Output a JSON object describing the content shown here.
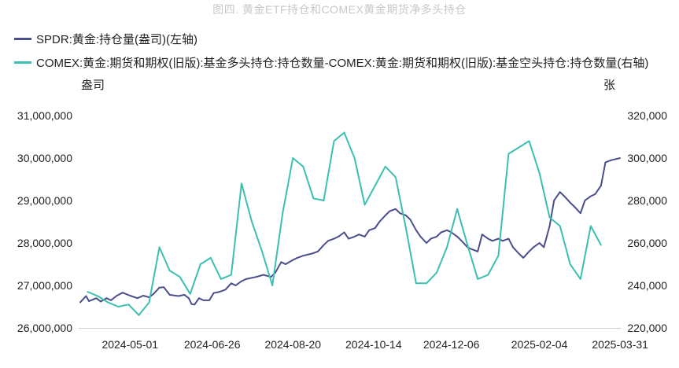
{
  "page_title": "图四. 黄金ETF持仓和COMEX黄金期货净多头持仓",
  "colors": {
    "spdr": "#4a4f8c",
    "comex": "#3cbfb0",
    "axis": "#cfcfcf"
  },
  "chart_data": {
    "type": "line",
    "title": "图四. 黄金ETF持仓和COMEX黄金期货净多头持仓",
    "left_unit": "盎司",
    "right_unit": "张",
    "y_left": {
      "min": 26000000,
      "max": 31000000,
      "ticks": [
        "26,000,000",
        "27,000,000",
        "28,000,000",
        "29,000,000",
        "30,000,000",
        "31,000,000"
      ]
    },
    "y_right": {
      "min": 220000,
      "max": 320000,
      "ticks": [
        "220,000",
        "240,000",
        "260,000",
        "280,000",
        "300,000",
        "320,000"
      ]
    },
    "x_range": [
      "2024-03-27",
      "2025-04-01"
    ],
    "x_ticks": [
      "2024-05-01",
      "2024-06-26",
      "2024-08-20",
      "2024-10-14",
      "2024-12-06",
      "2025-02-04",
      "2025-03-31"
    ],
    "series": [
      {
        "name": "SPDR:黄金:持仓量(盎司)(左轴)",
        "axis": "left",
        "points": [
          [
            "2024-03-28",
            26600000
          ],
          [
            "2024-04-01",
            26750000
          ],
          [
            "2024-04-03",
            26630000
          ],
          [
            "2024-04-08",
            26700000
          ],
          [
            "2024-04-11",
            26620000
          ],
          [
            "2024-04-15",
            26700000
          ],
          [
            "2024-04-18",
            26650000
          ],
          [
            "2024-04-22",
            26760000
          ],
          [
            "2024-04-26",
            26830000
          ],
          [
            "2024-05-01",
            26760000
          ],
          [
            "2024-05-06",
            26700000
          ],
          [
            "2024-05-10",
            26760000
          ],
          [
            "2024-05-14",
            26720000
          ],
          [
            "2024-05-17",
            26800000
          ],
          [
            "2024-05-21",
            26950000
          ],
          [
            "2024-05-24",
            26960000
          ],
          [
            "2024-05-28",
            26780000
          ],
          [
            "2024-06-03",
            26750000
          ],
          [
            "2024-06-07",
            26780000
          ],
          [
            "2024-06-10",
            26700000
          ],
          [
            "2024-06-12",
            26560000
          ],
          [
            "2024-06-14",
            26550000
          ],
          [
            "2024-06-17",
            26700000
          ],
          [
            "2024-06-20",
            26650000
          ],
          [
            "2024-06-24",
            26650000
          ],
          [
            "2024-06-27",
            26820000
          ],
          [
            "2024-07-01",
            26850000
          ],
          [
            "2024-07-05",
            26900000
          ],
          [
            "2024-07-09",
            27050000
          ],
          [
            "2024-07-12",
            27000000
          ],
          [
            "2024-07-16",
            27100000
          ],
          [
            "2024-07-19",
            27150000
          ],
          [
            "2024-07-23",
            27180000
          ],
          [
            "2024-07-26",
            27200000
          ],
          [
            "2024-07-31",
            27250000
          ],
          [
            "2024-08-05",
            27200000
          ],
          [
            "2024-08-08",
            27300000
          ],
          [
            "2024-08-12",
            27550000
          ],
          [
            "2024-08-15",
            27500000
          ],
          [
            "2024-08-20",
            27600000
          ],
          [
            "2024-08-23",
            27650000
          ],
          [
            "2024-08-27",
            27700000
          ],
          [
            "2024-09-02",
            27750000
          ],
          [
            "2024-09-06",
            27800000
          ],
          [
            "2024-09-10",
            27950000
          ],
          [
            "2024-09-13",
            28050000
          ],
          [
            "2024-09-17",
            28100000
          ],
          [
            "2024-09-20",
            28150000
          ],
          [
            "2024-09-24",
            28250000
          ],
          [
            "2024-09-27",
            28100000
          ],
          [
            "2024-10-01",
            28150000
          ],
          [
            "2024-10-04",
            28200000
          ],
          [
            "2024-10-08",
            28150000
          ],
          [
            "2024-10-11",
            28300000
          ],
          [
            "2024-10-15",
            28350000
          ],
          [
            "2024-10-18",
            28500000
          ],
          [
            "2024-10-22",
            28650000
          ],
          [
            "2024-10-25",
            28750000
          ],
          [
            "2024-10-29",
            28800000
          ],
          [
            "2024-11-01",
            28700000
          ],
          [
            "2024-11-05",
            28650000
          ],
          [
            "2024-11-08",
            28550000
          ],
          [
            "2024-11-12",
            28300000
          ],
          [
            "2024-11-15",
            28150000
          ],
          [
            "2024-11-19",
            28000000
          ],
          [
            "2024-11-22",
            28100000
          ],
          [
            "2024-11-26",
            28150000
          ],
          [
            "2024-11-29",
            28250000
          ],
          [
            "2024-12-03",
            28300000
          ],
          [
            "2024-12-06",
            28250000
          ],
          [
            "2024-12-10",
            28150000
          ],
          [
            "2024-12-13",
            28050000
          ],
          [
            "2024-12-17",
            27900000
          ],
          [
            "2024-12-20",
            27850000
          ],
          [
            "2024-12-24",
            27800000
          ],
          [
            "2024-12-27",
            28200000
          ],
          [
            "2024-12-31",
            28100000
          ],
          [
            "2025-01-03",
            28050000
          ],
          [
            "2025-01-07",
            28100000
          ],
          [
            "2025-01-10",
            28050000
          ],
          [
            "2025-01-14",
            28100000
          ],
          [
            "2025-01-17",
            27900000
          ],
          [
            "2025-01-21",
            27750000
          ],
          [
            "2025-01-24",
            27650000
          ],
          [
            "2025-01-28",
            27800000
          ],
          [
            "2025-01-31",
            27900000
          ],
          [
            "2025-02-04",
            28000000
          ],
          [
            "2025-02-07",
            27900000
          ],
          [
            "2025-02-11",
            28400000
          ],
          [
            "2025-02-14",
            29000000
          ],
          [
            "2025-02-18",
            29200000
          ],
          [
            "2025-02-21",
            29100000
          ],
          [
            "2025-02-25",
            28950000
          ],
          [
            "2025-02-28",
            28850000
          ],
          [
            "2025-03-04",
            28700000
          ],
          [
            "2025-03-07",
            29000000
          ],
          [
            "2025-03-11",
            29100000
          ],
          [
            "2025-03-14",
            29150000
          ],
          [
            "2025-03-18",
            29350000
          ],
          [
            "2025-03-21",
            29900000
          ],
          [
            "2025-03-25",
            29950000
          ],
          [
            "2025-03-31",
            30000000
          ]
        ]
      },
      {
        "name": "COMEX:黄金:期货和期权(旧版):基金多头持仓:持仓数量-COMEX:黄金:期货和期权(旧版):基金空头持仓:持仓数量(右轴)",
        "axis": "right",
        "points": [
          [
            "2024-04-02",
            237000
          ],
          [
            "2024-04-09",
            235000
          ],
          [
            "2024-04-16",
            232000
          ],
          [
            "2024-04-23",
            230000
          ],
          [
            "2024-04-30",
            231000
          ],
          [
            "2024-05-07",
            226000
          ],
          [
            "2024-05-14",
            232000
          ],
          [
            "2024-05-21",
            258000
          ],
          [
            "2024-05-28",
            247000
          ],
          [
            "2024-06-04",
            244000
          ],
          [
            "2024-06-11",
            236000
          ],
          [
            "2024-06-18",
            250000
          ],
          [
            "2024-06-25",
            253000
          ],
          [
            "2024-07-02",
            243000
          ],
          [
            "2024-07-09",
            245000
          ],
          [
            "2024-07-16",
            288000
          ],
          [
            "2024-07-23",
            270000
          ],
          [
            "2024-07-30",
            256000
          ],
          [
            "2024-08-06",
            240000
          ],
          [
            "2024-08-13",
            274000
          ],
          [
            "2024-08-20",
            300000
          ],
          [
            "2024-08-27",
            296000
          ],
          [
            "2024-09-03",
            281000
          ],
          [
            "2024-09-10",
            280000
          ],
          [
            "2024-09-17",
            308000
          ],
          [
            "2024-09-24",
            312000
          ],
          [
            "2024-10-01",
            300000
          ],
          [
            "2024-10-08",
            278000
          ],
          [
            "2024-10-15",
            287000
          ],
          [
            "2024-10-22",
            296000
          ],
          [
            "2024-10-29",
            291000
          ],
          [
            "2024-11-05",
            267000
          ],
          [
            "2024-11-12",
            241000
          ],
          [
            "2024-11-19",
            241000
          ],
          [
            "2024-11-26",
            246000
          ],
          [
            "2024-12-03",
            258000
          ],
          [
            "2024-12-10",
            276000
          ],
          [
            "2024-12-17",
            259000
          ],
          [
            "2024-12-24",
            243000
          ],
          [
            "2024-12-31",
            245000
          ],
          [
            "2025-01-07",
            254000
          ],
          [
            "2025-01-14",
            302000
          ],
          [
            "2025-01-21",
            305000
          ],
          [
            "2025-01-28",
            308000
          ],
          [
            "2025-02-04",
            293000
          ],
          [
            "2025-02-11",
            272000
          ],
          [
            "2025-02-18",
            268000
          ],
          [
            "2025-02-25",
            250000
          ],
          [
            "2025-03-04",
            243000
          ],
          [
            "2025-03-11",
            268000
          ],
          [
            "2025-03-18",
            259000
          ]
        ]
      }
    ]
  }
}
